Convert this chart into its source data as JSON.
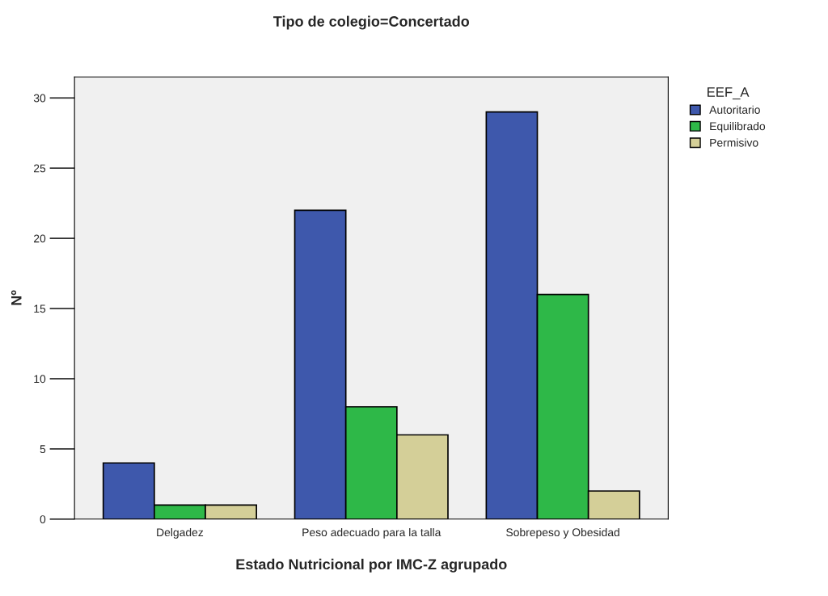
{
  "chart_data": {
    "type": "bar",
    "title": "Tipo de colegio=Concertado",
    "xlabel": "Estado Nutricional por IMC-Z agrupado",
    "ylabel": "Nº",
    "legend_title": "EEF_A",
    "categories": [
      "Delgadez",
      "Peso adecuado para la talla",
      "Sobrepeso y Obesidad"
    ],
    "series": [
      {
        "name": "Autoritario",
        "color": "#3e58ac",
        "values": [
          4,
          22,
          29
        ]
      },
      {
        "name": "Equilibrado",
        "color": "#2eb848",
        "values": [
          1,
          8,
          16
        ]
      },
      {
        "name": "Permisivo",
        "color": "#d4cf98",
        "values": [
          1,
          6,
          2
        ]
      }
    ],
    "ylim": [
      0,
      31.5
    ],
    "yticks": [
      0,
      5,
      10,
      15,
      20,
      25,
      30
    ],
    "grid": false,
    "legend": "top right"
  }
}
